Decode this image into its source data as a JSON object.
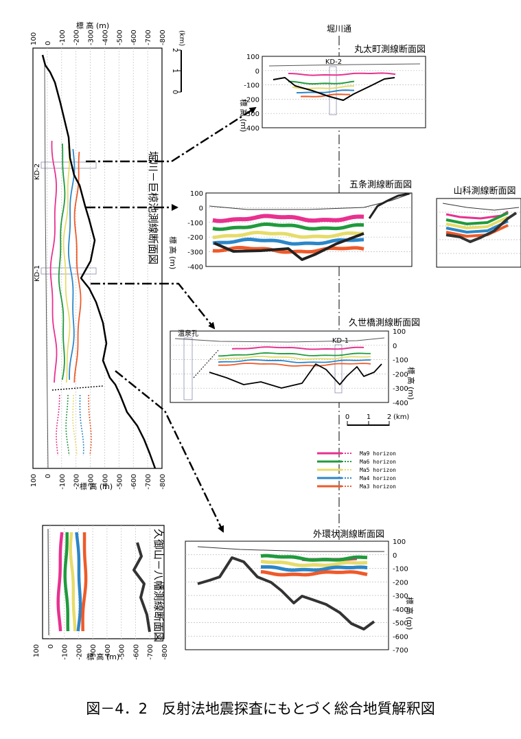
{
  "figure_caption": "図－4．2　反射法地震探査にもとづく総合地質解釈図",
  "street_label": "堀川通",
  "legend": [
    {
      "name": "Ma9 horizon",
      "color": "#e8318f"
    },
    {
      "name": "Ma6 horizon",
      "color": "#1f9a3c"
    },
    {
      "name": "Ma5 horizon",
      "color": "#e6dc6a"
    },
    {
      "name": "Ma4 horizon",
      "color": "#2b86c8"
    },
    {
      "name": "Ma3 horizon",
      "color": "#ee5a2a"
    }
  ],
  "scale_bars": {
    "vertical": {
      "ticks": [
        "0",
        "1",
        "2"
      ],
      "unit": "(km)"
    },
    "horizontal": {
      "ticks": [
        "0",
        "1",
        "2"
      ],
      "unit": "(km)"
    }
  },
  "chart_data": [
    {
      "type": "line",
      "title": "堀川－巨椋池測線断面図",
      "ylabel": "標 高 (m)",
      "y_ticks": [
        "100",
        "0",
        "-100",
        "-200",
        "-300",
        "-400",
        "-500",
        "-600",
        "-700",
        "-800"
      ],
      "ylim": [
        -800,
        100
      ],
      "orientation": "rotated-90",
      "annotations": [
        "KD-2",
        "KD-1"
      ]
    },
    {
      "type": "line",
      "title": "丸太町測線断面図",
      "ylabel": "標 高 (m)",
      "y_ticks": [
        "100",
        "0",
        "-100",
        "-200",
        "-300",
        "-400"
      ],
      "ylim": [
        -400,
        100
      ],
      "annotations": [
        "KD-2"
      ]
    },
    {
      "type": "line",
      "title": "五条測線断面図",
      "ylabel": "標 高 (m)",
      "y_ticks": [
        "100",
        "0",
        "-100",
        "-200",
        "-300",
        "-400"
      ],
      "ylim": [
        -400,
        100
      ]
    },
    {
      "type": "line",
      "title": "山科測線断面図",
      "ylim": [
        -400,
        100
      ]
    },
    {
      "type": "line",
      "title": "久世橋測線断面図",
      "ylabel": "標 高 (m)",
      "y_ticks": [
        "100",
        "0",
        "-100",
        "-200",
        "-300",
        "-400"
      ],
      "ylim": [
        -400,
        100
      ],
      "annotations": [
        "温泉孔",
        "KD-1"
      ]
    },
    {
      "type": "line",
      "title": "外環状測線断面図",
      "ylabel": "標 高 (m)",
      "y_ticks": [
        "100",
        "0",
        "-100",
        "-200",
        "-300",
        "-400",
        "-500",
        "-600",
        "-700"
      ],
      "ylim": [
        -700,
        100
      ]
    },
    {
      "type": "line",
      "title": "久御山－八幡測線断面図",
      "ylabel": "標 高 (m)",
      "y_ticks": [
        "100",
        "0",
        "-100",
        "-200",
        "-300",
        "-400",
        "-500",
        "-600",
        "-700",
        "-800"
      ],
      "ylim": [
        -800,
        100
      ],
      "orientation": "rotated-90"
    }
  ]
}
